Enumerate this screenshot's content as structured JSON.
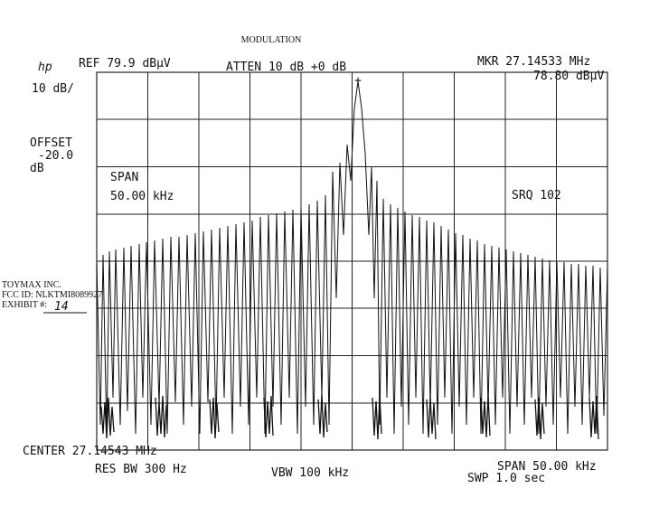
{
  "header": {
    "title": "MODULATION",
    "logo": "hp",
    "ref": "REF 79.9 dBµV",
    "atten": "ATTEN 10 dB +0 dB",
    "marker_freq": "MKR 27.14533 MHz",
    "marker_level": "78.80 dBµV"
  },
  "left_panel": {
    "scale": "10 dB/",
    "offset_label": "OFFSET",
    "offset_value": "-20.0",
    "offset_unit": "dB"
  },
  "annotations": {
    "span_label": "SPAN",
    "span_value": "50.00 kHz",
    "srq": "SRQ 102"
  },
  "stamp": {
    "company": "TOYMAX INC.",
    "fcc_id": "FCC ID: NLKTMI8089927",
    "exhibit_label": "EXHIBIT #:",
    "exhibit_number": "14"
  },
  "footer": {
    "center": "CENTER 27.14543 MHz",
    "res_bw": "RES BW 300 Hz",
    "vbw": "VBW 100 kHz",
    "span": "SPAN 50.00 kHz",
    "sweep": "SWP 1.0 sec"
  }
}
